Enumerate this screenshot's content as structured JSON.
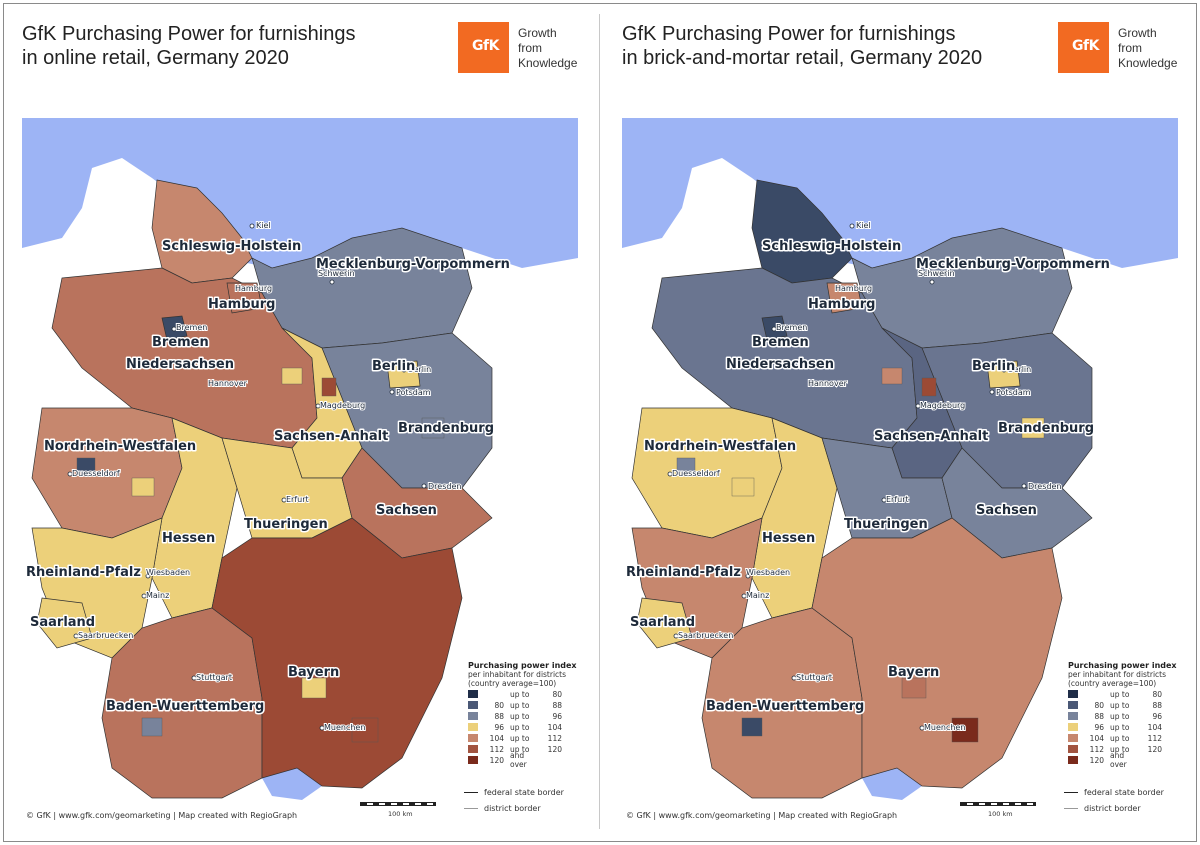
{
  "panels": [
    {
      "title_line1": "GfK Purchasing Power for furnishings",
      "title_line2": "in online retail, Germany 2020",
      "regions": {
        "schleswig": "#c6876e",
        "niedersachsen": "#b9735d",
        "bremen": "#3a4a66",
        "hamburg": "#b9735d",
        "meck": "#78839b",
        "brandenburg": "#78839b",
        "berlin": "#ecd07a",
        "sachsenanhalt": "#ecd07a",
        "nrw": "#c6876e",
        "hessen": "#ecd07a",
        "thueringen": "#ecd07a",
        "sachsen": "#b9735d",
        "rlp": "#ecd07a",
        "saarland": "#ecd07a",
        "bw": "#b9735d",
        "bayern": "#9c4a35"
      },
      "patches": [
        "#ecd07a",
        "#9c4a35",
        "#3a4a66",
        "#ecd07a",
        "#78839b",
        "#9c4a35",
        "#ecd07a",
        "#78839b"
      ]
    },
    {
      "title_line1": "GfK Purchasing Power for furnishings",
      "title_line2": "in brick-and-mortar retail, Germany 2020",
      "regions": {
        "schleswig": "#3a4a66",
        "niedersachsen": "#6a7590",
        "bremen": "#3a4a66",
        "hamburg": "#c6876e",
        "meck": "#78839b",
        "brandenburg": "#6a7590",
        "berlin": "#ecd07a",
        "sachsenanhalt": "#5a6582",
        "nrw": "#ecd07a",
        "hessen": "#ecd07a",
        "thueringen": "#78839b",
        "sachsen": "#78839b",
        "rlp": "#c6876e",
        "saarland": "#ecd07a",
        "bw": "#c6876e",
        "bayern": "#c6876e"
      },
      "patches": [
        "#c6876e",
        "#9c4a35",
        "#78839b",
        "#ecd07a",
        "#ecd07a",
        "#7a2a1c",
        "#b9735d",
        "#3a4a66"
      ]
    }
  ],
  "logo": {
    "text": "GfK",
    "color": "#f26a22",
    "slogan_line1": "Growth",
    "slogan_line2": "from",
    "slogan_line3": "Knowledge"
  },
  "sea_color": "#9db4f5",
  "states": {
    "schleswig": "Schleswig-Holstein",
    "meck": "Mecklenburg-Vorpommern",
    "hamburg": "Hamburg",
    "bremen": "Bremen",
    "niedersachsen": "Niedersachsen",
    "berlin": "Berlin",
    "nrw": "Nordrhein-Westfalen",
    "sachsenanhalt": "Sachsen-Anhalt",
    "brandenburg": "Brandenburg",
    "sachsen": "Sachsen",
    "thueringen": "Thueringen",
    "hessen": "Hessen",
    "rlp": "Rheinland-Pfalz",
    "saarland": "Saarland",
    "bayern": "Bayern",
    "bw": "Baden-Wuerttemberg"
  },
  "cities": {
    "kiel": "Kiel",
    "schwerin": "Schwerin",
    "hamburg": "Hamburg",
    "bremen": "Bremen",
    "hannover": "Hannover",
    "berlin": "Berlin",
    "potsdam": "Potsdam",
    "magdeburg": "Magdeburg",
    "duesseldorf": "Duesseldorf",
    "erfurt": "Erfurt",
    "dresden": "Dresden",
    "wiesbaden": "Wiesbaden",
    "mainz": "Mainz",
    "saarbruecken": "Saarbruecken",
    "stuttgart": "Stuttgart",
    "muenchen": "Muenchen"
  },
  "legend": {
    "title": "Purchasing power index",
    "sub1": "per inhabitant for districts",
    "sub2": "(country average=100)",
    "rows": [
      {
        "color": "#1f2d48",
        "from": "",
        "mid": "up to",
        "to": "80"
      },
      {
        "color": "#4a5876",
        "from": "80",
        "mid": "up to",
        "to": "88"
      },
      {
        "color": "#78839b",
        "from": "88",
        "mid": "up to",
        "to": "96"
      },
      {
        "color": "#ecd07a",
        "from": "96",
        "mid": "up to",
        "to": "104"
      },
      {
        "color": "#c6876e",
        "from": "104",
        "mid": "up to",
        "to": "112"
      },
      {
        "color": "#a25440",
        "from": "112",
        "mid": "up to",
        "to": "120"
      },
      {
        "color": "#7a2a1c",
        "from": "120",
        "mid": "and over",
        "to": ""
      }
    ],
    "federal_border": "federal state border",
    "district_border": "district border"
  },
  "scale_label": "100 km",
  "footer": "© GfK | www.gfk.com/geomarketing | Map created with RegioGraph"
}
